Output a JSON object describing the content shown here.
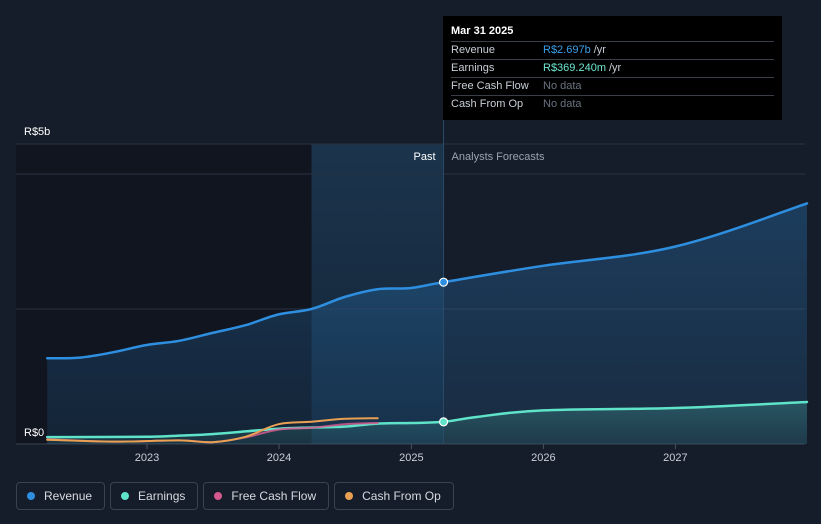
{
  "tooltip": {
    "date": "Mar 31 2025",
    "rows": [
      {
        "label": "Revenue",
        "value": "R$2.697b",
        "unit": "/yr"
      },
      {
        "label": "Earnings",
        "value": "R$369.240m",
        "unit": "/yr"
      },
      {
        "label": "Free Cash Flow",
        "value": "No data",
        "unit": ""
      },
      {
        "label": "Cash From Op",
        "value": "No data",
        "unit": ""
      }
    ]
  },
  "labels": {
    "past": "Past",
    "forecast": "Analysts Forecasts",
    "y_top": "R$5b",
    "y_bottom": "R$0"
  },
  "legend": [
    {
      "label": "Revenue",
      "color": "#2e8fe0"
    },
    {
      "label": "Earnings",
      "color": "#5fe3c9"
    },
    {
      "label": "Free Cash Flow",
      "color": "#d3588e"
    },
    {
      "label": "Cash From Op",
      "color": "#e9a052"
    }
  ],
  "colors": {
    "revenue": "#2e8fe0",
    "earnings": "#5fe3c9",
    "fcf": "#d3588e",
    "cfo": "#e9a052",
    "background": "#161d2a"
  },
  "chart_data": {
    "type": "line",
    "title": "",
    "x_ticks": [
      "2023",
      "2024",
      "2025",
      "2026",
      "2027"
    ],
    "ylim": [
      0,
      5000
    ],
    "y_unit": "R$ millions",
    "divider_date": "2025-03-31",
    "highlight_start": "2024-03-31",
    "series": [
      {
        "name": "Revenue",
        "points": [
          [
            "2022-03-31",
            1430
          ],
          [
            "2022-06-30",
            1440
          ],
          [
            "2022-09-30",
            1530
          ],
          [
            "2022-12-31",
            1650
          ],
          [
            "2023-03-31",
            1720
          ],
          [
            "2023-06-30",
            1850
          ],
          [
            "2023-09-30",
            1980
          ],
          [
            "2023-12-31",
            2160
          ],
          [
            "2024-03-31",
            2250
          ],
          [
            "2024-06-30",
            2450
          ],
          [
            "2024-09-30",
            2580
          ],
          [
            "2024-12-31",
            2600
          ],
          [
            "2025-03-31",
            2697
          ],
          [
            "2025-12-31",
            2970
          ],
          [
            "2026-12-31",
            3290
          ],
          [
            "2027-12-31",
            4010
          ]
        ]
      },
      {
        "name": "Earnings",
        "points": [
          [
            "2022-03-31",
            115
          ],
          [
            "2022-12-31",
            120
          ],
          [
            "2023-03-31",
            140
          ],
          [
            "2023-06-30",
            165
          ],
          [
            "2023-09-30",
            210
          ],
          [
            "2023-12-31",
            255
          ],
          [
            "2024-03-31",
            275
          ],
          [
            "2024-06-30",
            290
          ],
          [
            "2024-09-30",
            340
          ],
          [
            "2024-12-31",
            350
          ],
          [
            "2025-03-31",
            369.24
          ],
          [
            "2025-06-30",
            450
          ],
          [
            "2025-12-31",
            560
          ],
          [
            "2026-12-31",
            600
          ],
          [
            "2027-12-31",
            700
          ]
        ]
      },
      {
        "name": "Free Cash Flow",
        "points": [
          [
            "2022-03-31",
            80
          ],
          [
            "2022-09-30",
            40
          ],
          [
            "2023-03-31",
            60
          ],
          [
            "2023-06-30",
            30
          ],
          [
            "2023-09-30",
            110
          ],
          [
            "2023-12-31",
            240
          ],
          [
            "2024-03-31",
            270
          ],
          [
            "2024-06-30",
            330
          ],
          [
            "2024-09-30",
            350
          ]
        ]
      },
      {
        "name": "Cash From Op",
        "points": [
          [
            "2022-03-31",
            70
          ],
          [
            "2022-09-30",
            40
          ],
          [
            "2023-03-31",
            60
          ],
          [
            "2023-06-30",
            30
          ],
          [
            "2023-09-30",
            120
          ],
          [
            "2023-12-31",
            330
          ],
          [
            "2024-03-31",
            370
          ],
          [
            "2024-06-30",
            420
          ],
          [
            "2024-09-30",
            430
          ]
        ]
      }
    ],
    "markers": [
      {
        "series": "Revenue",
        "x": "2025-03-31",
        "y": 2697
      },
      {
        "series": "Earnings",
        "x": "2025-03-31",
        "y": 369.24
      }
    ]
  }
}
